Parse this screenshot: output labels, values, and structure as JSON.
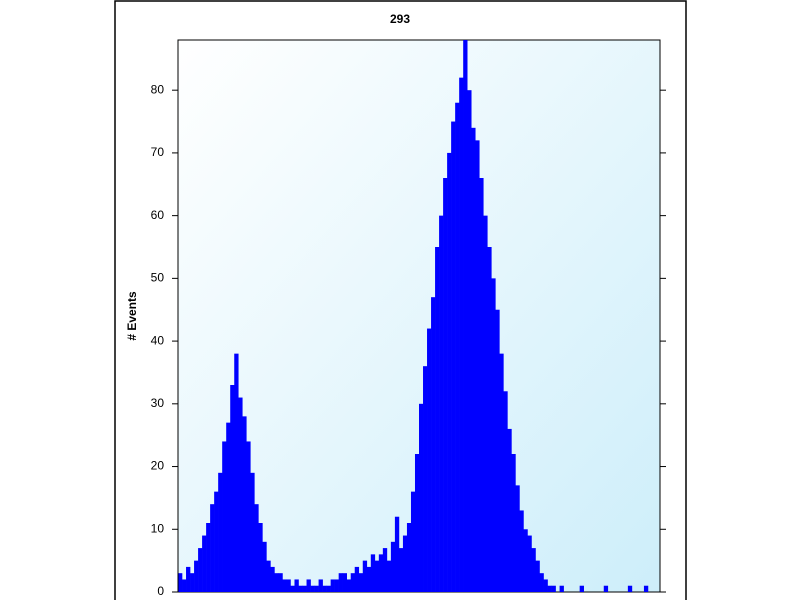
{
  "chart_data": {
    "type": "bar",
    "title": "293",
    "y_label": "# Events",
    "color": "#0000ff",
    "categories": [
      null,
      null,
      null,
      null,
      null,
      null,
      null,
      null,
      null,
      null,
      null,
      null,
      null,
      null,
      null,
      null,
      null,
      null,
      null,
      null,
      null,
      null,
      null,
      null,
      null,
      null,
      null,
      null,
      null,
      null,
      null,
      null,
      null,
      null,
      null,
      null,
      null,
      null,
      null,
      null,
      null,
      null,
      null,
      null,
      null,
      null,
      null,
      null,
      null,
      null,
      null,
      null,
      null,
      null,
      null,
      null,
      null,
      null,
      null,
      null,
      null,
      null,
      null,
      null,
      null,
      null,
      null,
      null,
      null,
      null,
      null,
      null,
      null,
      null,
      null,
      null,
      null,
      null,
      null,
      null,
      null,
      null,
      null,
      null,
      null,
      null,
      null,
      null,
      null,
      null,
      null,
      null,
      null,
      null,
      null,
      null,
      null,
      null,
      null,
      null,
      null,
      null,
      null,
      null,
      null,
      null,
      null,
      null,
      null,
      null,
      null,
      null,
      null,
      null,
      null,
      null,
      null,
      null,
      null,
      null
    ],
    "values": [
      3,
      2,
      4,
      3,
      5,
      7,
      9,
      11,
      14,
      16,
      19,
      24,
      27,
      33,
      38,
      31,
      28,
      24,
      19,
      14,
      11,
      8,
      5,
      4,
      3,
      3,
      2,
      2,
      1,
      2,
      1,
      1,
      2,
      1,
      1,
      2,
      1,
      1,
      2,
      2,
      3,
      3,
      2,
      3,
      4,
      3,
      5,
      4,
      6,
      5,
      6,
      7,
      5,
      8,
      12,
      7,
      9,
      11,
      16,
      22,
      30,
      36,
      42,
      47,
      55,
      60,
      66,
      70,
      75,
      78,
      82,
      88,
      80,
      74,
      72,
      66,
      60,
      55,
      50,
      45,
      38,
      32,
      26,
      22,
      17,
      13,
      10,
      9,
      7,
      5,
      3,
      2,
      1,
      1,
      0,
      1,
      0,
      0,
      0,
      0,
      1,
      0,
      0,
      0,
      0,
      0,
      1,
      0,
      0,
      0,
      0,
      0,
      1,
      0,
      0,
      0,
      1,
      0,
      0,
      0
    ],
    "ylim": [
      0,
      88
    ],
    "yticks": [
      0,
      10,
      20,
      30,
      40,
      50,
      60,
      70,
      80
    ]
  }
}
